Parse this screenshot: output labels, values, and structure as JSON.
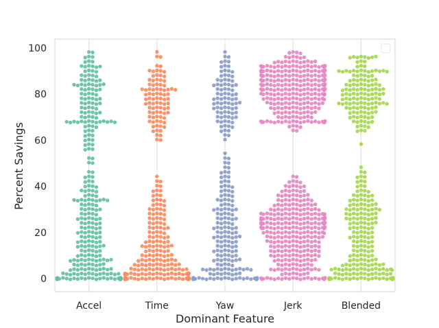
{
  "chart_data": {
    "type": "scatter",
    "subtype": "swarm",
    "title": "",
    "xlabel": "Dominant Feature",
    "ylabel": "Percent Savings",
    "ylim": [
      -6,
      104
    ],
    "yticks": [
      0,
      20,
      40,
      60,
      80,
      100
    ],
    "grid": "vertical",
    "legend": "top-right (empty)",
    "categories": [
      "Accel",
      "Time",
      "Yaw",
      "Jerk",
      "Blended"
    ],
    "colors": [
      "#66c2a5",
      "#fc8d62",
      "#8da0cb",
      "#e78ac3",
      "#a6d854"
    ],
    "series": [
      {
        "name": "Accel",
        "bins": [
          [
            0,
            38
          ],
          [
            2,
            16
          ],
          [
            4,
            12
          ],
          [
            6,
            9
          ],
          [
            8,
            12
          ],
          [
            10,
            7
          ],
          [
            12,
            6
          ],
          [
            14,
            8
          ],
          [
            16,
            7
          ],
          [
            18,
            6
          ],
          [
            20,
            7
          ],
          [
            22,
            6
          ],
          [
            24,
            6
          ],
          [
            26,
            7
          ],
          [
            28,
            5
          ],
          [
            30,
            6
          ],
          [
            32,
            5
          ],
          [
            34,
            10
          ],
          [
            36,
            4
          ],
          [
            38,
            5
          ],
          [
            40,
            4
          ],
          [
            42,
            3
          ],
          [
            44,
            3
          ],
          [
            46,
            2
          ],
          [
            50,
            2
          ],
          [
            52,
            2
          ],
          [
            56,
            3
          ],
          [
            58,
            3
          ],
          [
            60,
            3
          ],
          [
            62,
            3
          ],
          [
            64,
            3
          ],
          [
            66,
            4
          ],
          [
            68,
            14
          ],
          [
            70,
            5
          ],
          [
            72,
            6
          ],
          [
            74,
            5
          ],
          [
            76,
            6
          ],
          [
            78,
            6
          ],
          [
            80,
            5
          ],
          [
            82,
            6
          ],
          [
            84,
            9
          ],
          [
            86,
            6
          ],
          [
            88,
            5
          ],
          [
            90,
            4
          ],
          [
            92,
            6
          ],
          [
            94,
            3
          ],
          [
            96,
            3
          ],
          [
            98,
            2
          ]
        ]
      },
      {
        "name": "Time",
        "bins": [
          [
            0,
            34
          ],
          [
            2,
            26
          ],
          [
            4,
            16
          ],
          [
            6,
            13
          ],
          [
            8,
            11
          ],
          [
            10,
            9
          ],
          [
            12,
            7
          ],
          [
            14,
            9
          ],
          [
            16,
            7
          ],
          [
            18,
            6
          ],
          [
            20,
            5
          ],
          [
            22,
            6
          ],
          [
            24,
            5
          ],
          [
            26,
            5
          ],
          [
            28,
            5
          ],
          [
            30,
            5
          ],
          [
            32,
            4
          ],
          [
            34,
            4
          ],
          [
            36,
            3
          ],
          [
            38,
            3
          ],
          [
            40,
            2
          ],
          [
            42,
            2
          ],
          [
            44,
            1
          ],
          [
            60,
            2
          ],
          [
            62,
            2
          ],
          [
            64,
            3
          ],
          [
            66,
            4
          ],
          [
            68,
            5
          ],
          [
            70,
            5
          ],
          [
            72,
            6
          ],
          [
            74,
            6
          ],
          [
            76,
            7
          ],
          [
            78,
            7
          ],
          [
            80,
            7
          ],
          [
            82,
            10
          ],
          [
            84,
            5
          ],
          [
            86,
            5
          ],
          [
            88,
            4
          ],
          [
            90,
            5
          ],
          [
            92,
            2
          ],
          [
            96,
            2
          ],
          [
            98,
            1
          ]
        ]
      },
      {
        "name": "Yaw",
        "bins": [
          [
            0,
            34
          ],
          [
            2,
            9
          ],
          [
            4,
            14
          ],
          [
            6,
            5
          ],
          [
            8,
            8
          ],
          [
            10,
            6
          ],
          [
            12,
            7
          ],
          [
            14,
            6
          ],
          [
            16,
            6
          ],
          [
            18,
            8
          ],
          [
            20,
            6
          ],
          [
            22,
            7
          ],
          [
            24,
            5
          ],
          [
            26,
            6
          ],
          [
            28,
            5
          ],
          [
            30,
            7
          ],
          [
            32,
            4
          ],
          [
            34,
            5
          ],
          [
            36,
            4
          ],
          [
            38,
            4
          ],
          [
            40,
            4
          ],
          [
            42,
            3
          ],
          [
            44,
            3
          ],
          [
            46,
            3
          ],
          [
            48,
            2
          ],
          [
            50,
            2
          ],
          [
            52,
            2
          ],
          [
            54,
            1
          ],
          [
            60,
            1
          ],
          [
            62,
            2
          ],
          [
            64,
            3
          ],
          [
            66,
            4
          ],
          [
            68,
            5
          ],
          [
            70,
            6
          ],
          [
            72,
            6
          ],
          [
            74,
            7
          ],
          [
            76,
            8
          ],
          [
            78,
            7
          ],
          [
            80,
            6
          ],
          [
            82,
            5
          ],
          [
            84,
            7
          ],
          [
            86,
            5
          ],
          [
            88,
            4
          ],
          [
            90,
            4
          ],
          [
            92,
            3
          ],
          [
            94,
            3
          ],
          [
            96,
            2
          ],
          [
            98,
            1
          ]
        ]
      },
      {
        "name": "Jerk",
        "bins": [
          [
            0,
            22
          ],
          [
            2,
            8
          ],
          [
            4,
            14
          ],
          [
            6,
            10
          ],
          [
            8,
            12
          ],
          [
            10,
            14
          ],
          [
            12,
            14
          ],
          [
            14,
            14
          ],
          [
            16,
            15
          ],
          [
            18,
            16
          ],
          [
            20,
            18
          ],
          [
            22,
            24
          ],
          [
            24,
            26
          ],
          [
            26,
            26
          ],
          [
            28,
            20
          ],
          [
            30,
            14
          ],
          [
            32,
            12
          ],
          [
            34,
            10
          ],
          [
            36,
            9
          ],
          [
            38,
            7
          ],
          [
            40,
            6
          ],
          [
            42,
            4
          ],
          [
            44,
            2
          ],
          [
            64,
            2
          ],
          [
            66,
            4
          ],
          [
            68,
            22
          ],
          [
            70,
            10
          ],
          [
            72,
            12
          ],
          [
            74,
            14
          ],
          [
            76,
            16
          ],
          [
            78,
            18
          ],
          [
            80,
            20
          ],
          [
            82,
            22
          ],
          [
            84,
            22
          ],
          [
            86,
            24
          ],
          [
            88,
            24
          ],
          [
            90,
            26
          ],
          [
            92,
            24
          ],
          [
            94,
            12
          ],
          [
            96,
            6
          ],
          [
            98,
            4
          ]
        ]
      },
      {
        "name": "Blended",
        "bins": [
          [
            0,
            36
          ],
          [
            2,
            16
          ],
          [
            4,
            18
          ],
          [
            6,
            12
          ],
          [
            8,
            8
          ],
          [
            10,
            7
          ],
          [
            12,
            6
          ],
          [
            14,
            6
          ],
          [
            16,
            6
          ],
          [
            18,
            7
          ],
          [
            20,
            6
          ],
          [
            22,
            7
          ],
          [
            24,
            8
          ],
          [
            26,
            9
          ],
          [
            28,
            9
          ],
          [
            30,
            10
          ],
          [
            32,
            8
          ],
          [
            34,
            7
          ],
          [
            36,
            6
          ],
          [
            38,
            4
          ],
          [
            40,
            3
          ],
          [
            42,
            3
          ],
          [
            44,
            3
          ],
          [
            46,
            2
          ],
          [
            48,
            1
          ],
          [
            58,
            1
          ],
          [
            64,
            3
          ],
          [
            66,
            4
          ],
          [
            68,
            6
          ],
          [
            70,
            7
          ],
          [
            72,
            8
          ],
          [
            74,
            9
          ],
          [
            76,
            14
          ],
          [
            78,
            11
          ],
          [
            80,
            12
          ],
          [
            82,
            12
          ],
          [
            84,
            10
          ],
          [
            86,
            8
          ],
          [
            88,
            6
          ],
          [
            90,
            14
          ],
          [
            92,
            3
          ],
          [
            94,
            3
          ],
          [
            96,
            8
          ]
        ]
      }
    ]
  }
}
